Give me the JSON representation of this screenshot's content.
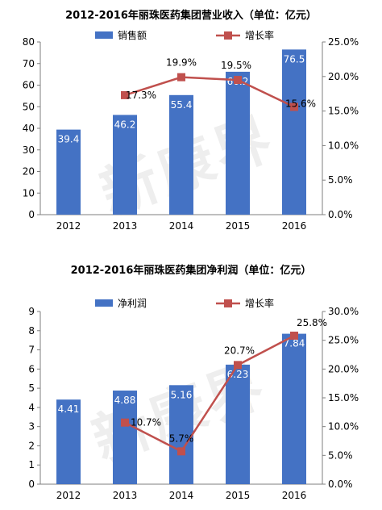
{
  "watermark": "新康界",
  "chart_data": [
    {
      "type": "bar",
      "title": "2012-2016年丽珠医药集团营业收入（单位：亿元）",
      "categories": [
        "2012",
        "2013",
        "2014",
        "2015",
        "2016"
      ],
      "series": [
        {
          "name": "销售额",
          "type": "bar",
          "axis": "left",
          "color": "#4472C4",
          "values": [
            39.4,
            46.2,
            55.4,
            66.2,
            76.5
          ],
          "labels": [
            "39.4",
            "46.2",
            "55.4",
            "66.2",
            "76.5"
          ]
        },
        {
          "name": "增长率",
          "type": "line",
          "axis": "right",
          "color": "#C0504D",
          "values": [
            null,
            17.3,
            19.9,
            19.5,
            15.6
          ],
          "labels": [
            "",
            "17.3%",
            "19.9%",
            "19.5%",
            "15.6%"
          ]
        }
      ],
      "ylim": [
        0,
        80
      ],
      "yticks": [
        "0",
        "10",
        "20",
        "30",
        "40",
        "50",
        "60",
        "70",
        "80"
      ],
      "y2lim": [
        0,
        25
      ],
      "y2ticks": [
        "0.0%",
        "5.0%",
        "10.0%",
        "15.0%",
        "20.0%",
        "25.0%"
      ],
      "legend": "top",
      "grid": false
    },
    {
      "type": "bar",
      "title": "2012-2016年丽珠医药集团净利润（单位：亿元）",
      "categories": [
        "2012",
        "2013",
        "2014",
        "2015",
        "2016"
      ],
      "series": [
        {
          "name": "净利润",
          "type": "bar",
          "axis": "left",
          "color": "#4472C4",
          "values": [
            4.41,
            4.88,
            5.16,
            6.23,
            7.84
          ],
          "labels": [
            "4.41",
            "4.88",
            "5.16",
            "6.23",
            "7.84"
          ]
        },
        {
          "name": "增长率",
          "type": "line",
          "axis": "right",
          "color": "#C0504D",
          "values": [
            null,
            10.7,
            5.7,
            20.7,
            25.8
          ],
          "labels": [
            "",
            "10.7%",
            "5.7%",
            "20.7%",
            "25.8%"
          ]
        }
      ],
      "ylim": [
        0,
        9
      ],
      "yticks": [
        "0",
        "1",
        "2",
        "3",
        "4",
        "5",
        "6",
        "7",
        "8",
        "9"
      ],
      "y2lim": [
        0,
        30
      ],
      "y2ticks": [
        "0.0%",
        "5.0%",
        "10.0%",
        "15.0%",
        "20.0%",
        "25.0%",
        "30.0%"
      ],
      "legend": "top",
      "grid": false
    }
  ]
}
